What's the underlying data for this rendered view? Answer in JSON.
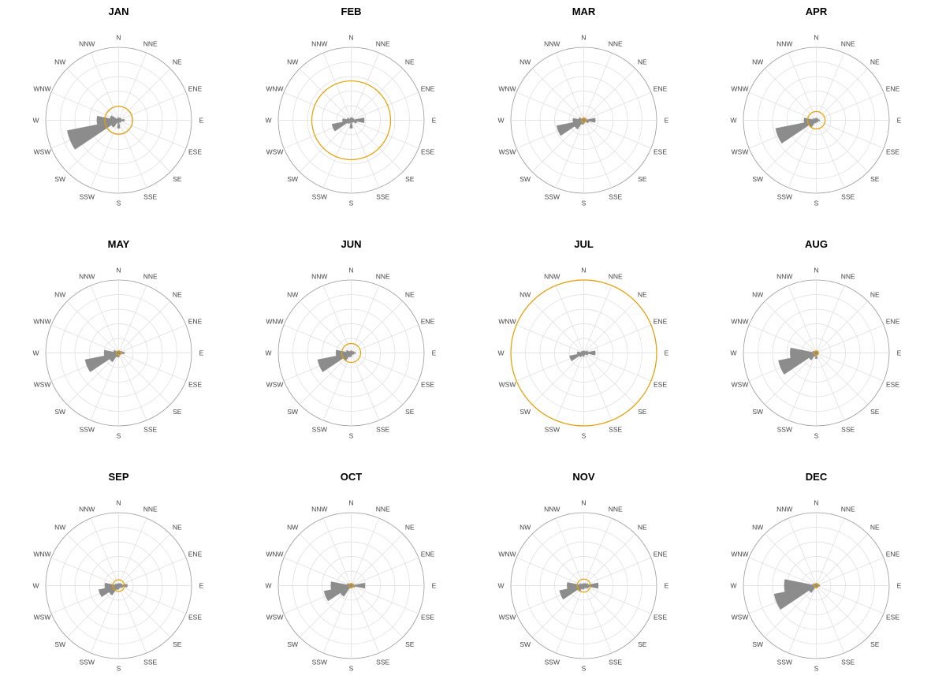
{
  "chart_data": {
    "type": "polar-bar",
    "directions": [
      "N",
      "NNE",
      "NE",
      "ENE",
      "E",
      "ESE",
      "SE",
      "SSE",
      "S",
      "SSW",
      "SW",
      "WSW",
      "W",
      "WNW",
      "NW",
      "NNW"
    ],
    "rmax": 10,
    "grid_rings": [
      2,
      4,
      6,
      8,
      10
    ],
    "bar_color": "#8c8c8c",
    "circle_color": "#E69F00",
    "grid_color": "#dddddd",
    "outer_color": "#999999",
    "panels": [
      {
        "title": "JAN",
        "calm_radius": 1.9,
        "values": [
          0.4,
          0.3,
          0.4,
          0.4,
          0.8,
          0.4,
          0.4,
          0.3,
          1.1,
          0.4,
          1.2,
          7.2,
          3.0,
          1.2,
          0.3,
          0.3
        ]
      },
      {
        "title": "FEB",
        "calm_radius": 5.4,
        "values": [
          0.4,
          0.3,
          0.4,
          0.4,
          1.8,
          0.8,
          0.4,
          0.3,
          1.1,
          0.4,
          0.6,
          2.7,
          1.2,
          0.6,
          0.3,
          0.3
        ]
      },
      {
        "title": "MAR",
        "calm_radius": 0.3,
        "values": [
          0.4,
          0.3,
          0.4,
          0.4,
          1.6,
          0.7,
          0.3,
          0.3,
          0.5,
          0.6,
          1.5,
          3.8,
          1.5,
          0.7,
          0.3,
          0.3
        ]
      },
      {
        "title": "APR",
        "calm_radius": 1.2,
        "values": [
          0.3,
          0.3,
          0.3,
          0.3,
          0.5,
          0.3,
          0.3,
          0.3,
          0.3,
          0.4,
          1.2,
          5.7,
          1.7,
          0.5,
          0.3,
          0.3
        ]
      },
      {
        "title": "MAY",
        "calm_radius": 0.3,
        "values": [
          0.3,
          0.3,
          0.3,
          0.5,
          0.8,
          0.4,
          0.3,
          0.3,
          0.6,
          0.6,
          1.5,
          4.7,
          2.0,
          0.7,
          0.3,
          0.3
        ]
      },
      {
        "title": "JUN",
        "calm_radius": 1.3,
        "values": [
          0.3,
          0.3,
          0.3,
          0.4,
          0.6,
          0.4,
          0.3,
          0.3,
          0.5,
          0.6,
          1.3,
          4.7,
          2.1,
          0.7,
          0.3,
          0.3
        ]
      },
      {
        "title": "JUL",
        "calm_radius": 10.0,
        "values": [
          0.3,
          0.3,
          0.3,
          0.6,
          1.6,
          0.6,
          0.3,
          0.3,
          0.5,
          0.4,
          0.7,
          2.0,
          0.9,
          0.4,
          0.3,
          0.3
        ]
      },
      {
        "title": "AUG",
        "calm_radius": 0.3,
        "values": [
          0.3,
          0.3,
          0.3,
          0.3,
          0.3,
          0.3,
          0.3,
          0.3,
          0.8,
          0.5,
          1.2,
          5.3,
          3.6,
          0.5,
          0.3,
          0.3
        ]
      },
      {
        "title": "SEP",
        "calm_radius": 0.8,
        "values": [
          0.3,
          0.3,
          0.4,
          0.5,
          1.2,
          0.6,
          0.4,
          0.3,
          0.5,
          0.6,
          1.6,
          2.8,
          1.9,
          0.5,
          0.3,
          0.3
        ]
      },
      {
        "title": "OCT",
        "calm_radius": 0.3,
        "values": [
          0.3,
          0.3,
          0.3,
          0.4,
          1.9,
          0.5,
          0.3,
          0.3,
          0.3,
          0.4,
          1.8,
          3.8,
          2.8,
          0.6,
          0.3,
          0.3
        ]
      },
      {
        "title": "NOV",
        "calm_radius": 0.9,
        "values": [
          0.3,
          0.3,
          0.4,
          0.6,
          2.0,
          0.7,
          0.5,
          0.3,
          0.5,
          0.5,
          1.0,
          3.4,
          2.3,
          0.6,
          0.3,
          0.3
        ]
      },
      {
        "title": "DEC",
        "calm_radius": 0.3,
        "values": [
          0.3,
          0.3,
          0.3,
          0.4,
          0.5,
          0.3,
          0.3,
          0.3,
          0.3,
          0.3,
          1.2,
          5.9,
          4.4,
          0.5,
          0.3,
          0.3
        ]
      }
    ]
  }
}
